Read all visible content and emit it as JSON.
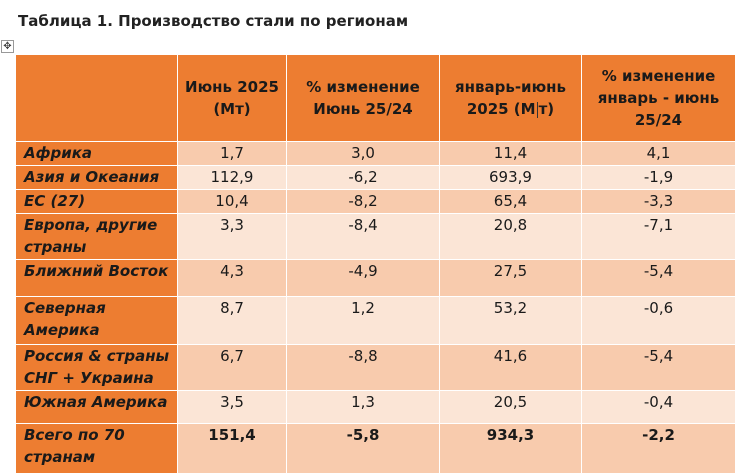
{
  "caption": "Таблица 1. Производство стали по регионам",
  "table": {
    "headers": [
      "",
      "Июнь 2025 (Мт)",
      "% изменение Июнь 25/24",
      "январь-июнь 2025 (Мт)",
      "% изменение январь - июнь 25/24"
    ],
    "rows": [
      {
        "region": "Африка",
        "jun": "1,7",
        "jun_chg": "3,0",
        "ytd": "11,4",
        "ytd_chg": "4,1"
      },
      {
        "region": "Азия и Океания",
        "jun": "112,9",
        "jun_chg": "-6,2",
        "ytd": "693,9",
        "ytd_chg": "-1,9"
      },
      {
        "region": "ЕС (27)",
        "jun": "10,4",
        "jun_chg": "-8,2",
        "ytd": "65,4",
        "ytd_chg": "-3,3"
      },
      {
        "region": "Европа, другие страны",
        "jun": "3,3",
        "jun_chg": "-8,4",
        "ytd": "20,8",
        "ytd_chg": "-7,1"
      },
      {
        "region": "Ближний Восток",
        "jun": "4,3",
        "jun_chg": "-4,9",
        "ytd": "27,5",
        "ytd_chg": "-5,4"
      },
      {
        "region": "Северная Америка",
        "jun": "8,7",
        "jun_chg": "1,2",
        "ytd": "53,2",
        "ytd_chg": "-0,6"
      },
      {
        "region": "Россия & страны СНГ + Украина",
        "jun": "6,7",
        "jun_chg": "-8,8",
        "ytd": "41,6",
        "ytd_chg": "-5,4"
      },
      {
        "region": "Южная Америка",
        "jun": "3,5",
        "jun_chg": "1,3",
        "ytd": "20,5",
        "ytd_chg": "-0,4"
      },
      {
        "region": "Всего по 70 странам",
        "jun": "151,4",
        "jun_chg": "-5,8",
        "ytd": "934,3",
        "ytd_chg": "-2,2"
      }
    ]
  }
}
